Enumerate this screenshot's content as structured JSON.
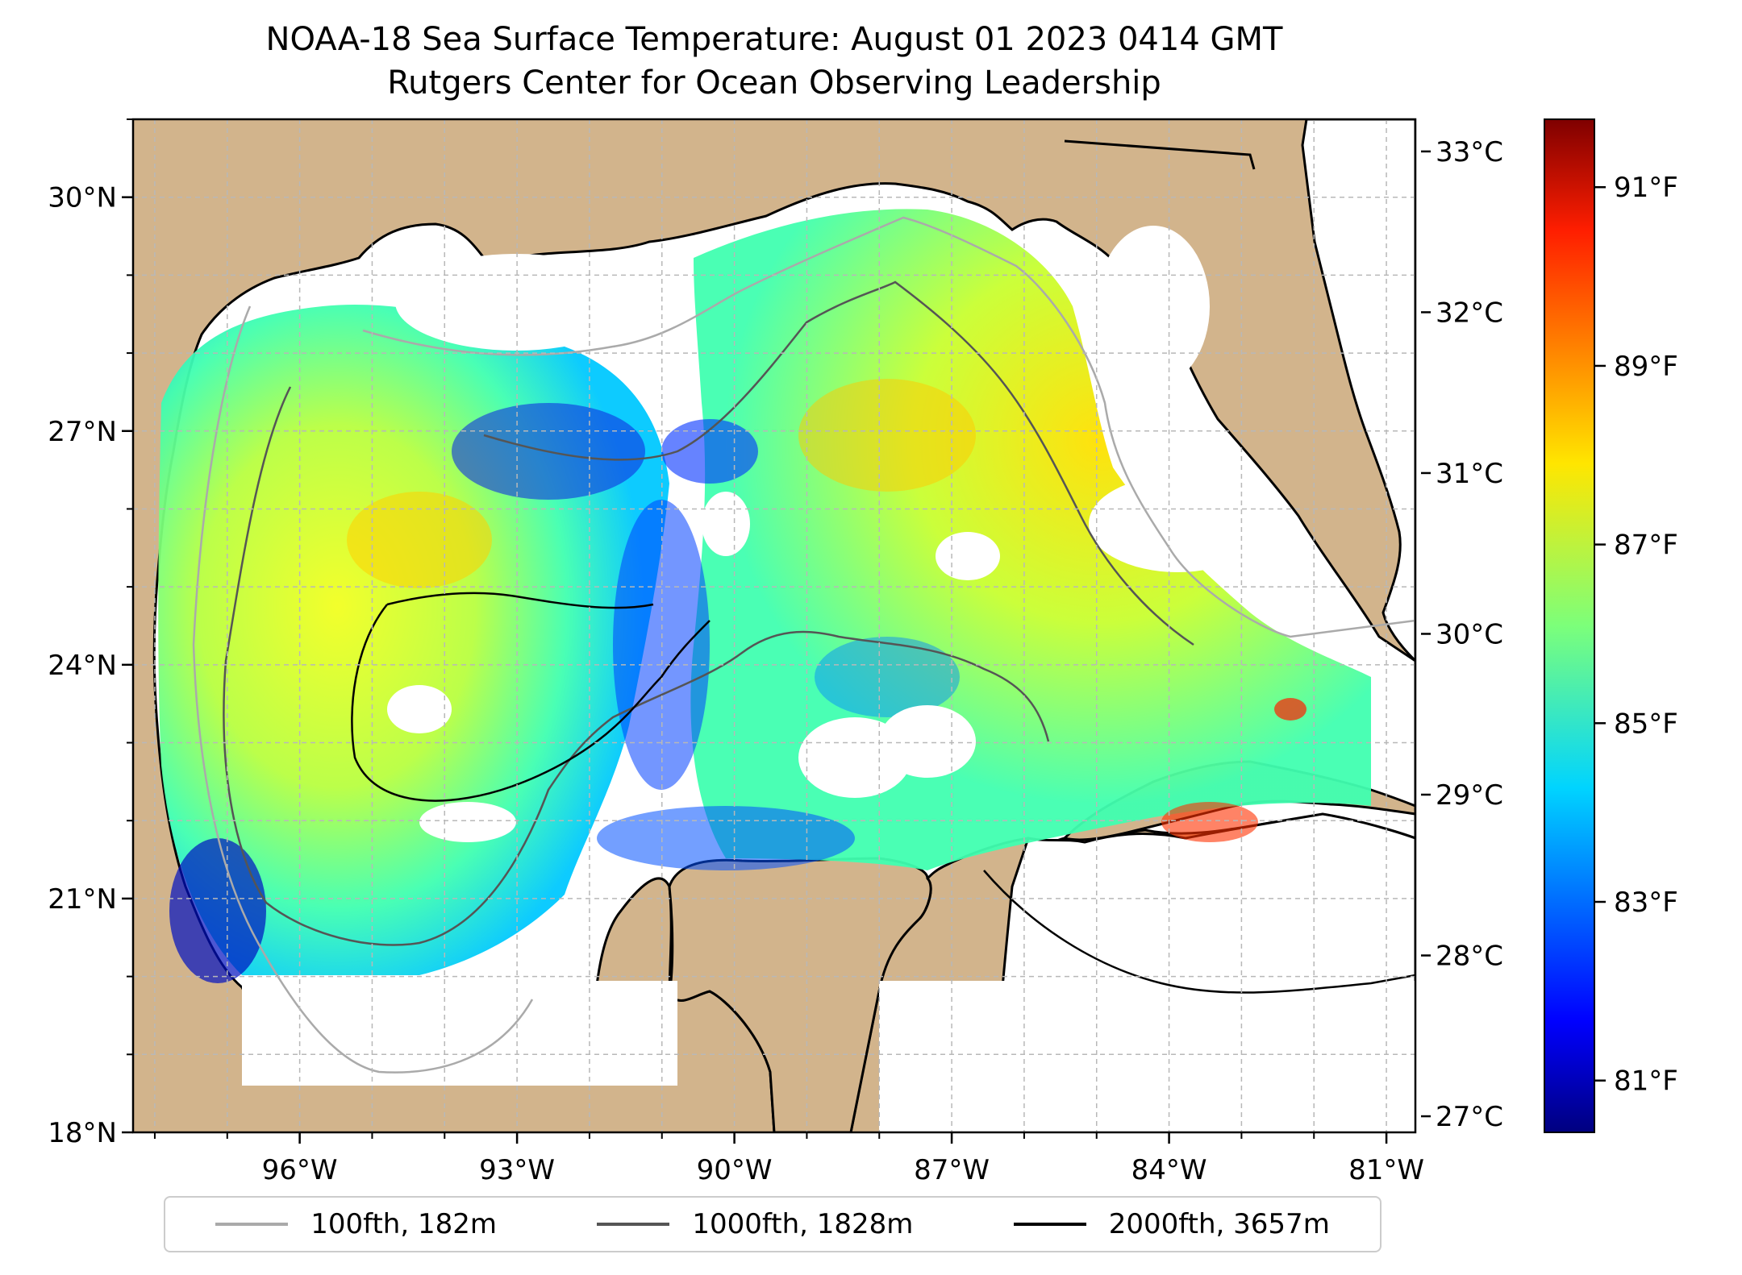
{
  "title": "NOAA-18 Sea Surface Temperature: August 01 2023 0414 GMT",
  "subtitle": "Rutgers Center for Ocean Observing Leadership",
  "map": {
    "lon_range": [
      -98.3,
      -80.6
    ],
    "lat_range": [
      18.0,
      31.0
    ],
    "lon_ticks": [
      {
        "value": -96,
        "label": "96°W"
      },
      {
        "value": -93,
        "label": "93°W"
      },
      {
        "value": -90,
        "label": "90°W"
      },
      {
        "value": -87,
        "label": "87°W"
      },
      {
        "value": -84,
        "label": "84°W"
      },
      {
        "value": -81,
        "label": "81°W"
      }
    ],
    "lat_ticks": [
      {
        "value": 30,
        "label": "30°N"
      },
      {
        "value": 27,
        "label": "27°N"
      },
      {
        "value": 24,
        "label": "24°N"
      },
      {
        "value": 21,
        "label": "21°N"
      },
      {
        "value": 18,
        "label": "18°N"
      }
    ],
    "colors": {
      "land": "#D2B48C",
      "coast": "#000000",
      "grid": "#b0b0b0",
      "water_body": "#9DB3D9"
    },
    "legend": [
      {
        "label": "100fth, 182m",
        "color": "#aaaaaa"
      },
      {
        "label": "1000fth, 1828m",
        "color": "#555555"
      },
      {
        "label": "2000fth, 3657m",
        "color": "#000000"
      }
    ]
  },
  "colorbar": {
    "colormap": "jet",
    "celsius_range": [
      26.9,
      33.2
    ],
    "celsius_ticks": [
      {
        "value": 33,
        "label": "33°C"
      },
      {
        "value": 32,
        "label": "32°C"
      },
      {
        "value": 31,
        "label": "31°C"
      },
      {
        "value": 30,
        "label": "30°C"
      },
      {
        "value": 29,
        "label": "29°C"
      },
      {
        "value": 28,
        "label": "28°C"
      },
      {
        "value": 27,
        "label": "27°C"
      }
    ],
    "fahrenheit_ticks": [
      {
        "value": 91,
        "label": "91°F"
      },
      {
        "value": 89,
        "label": "89°F"
      },
      {
        "value": 87,
        "label": "87°F"
      },
      {
        "value": 85,
        "label": "85°F"
      },
      {
        "value": 83,
        "label": "83°F"
      },
      {
        "value": 81,
        "label": "81°F"
      }
    ]
  }
}
